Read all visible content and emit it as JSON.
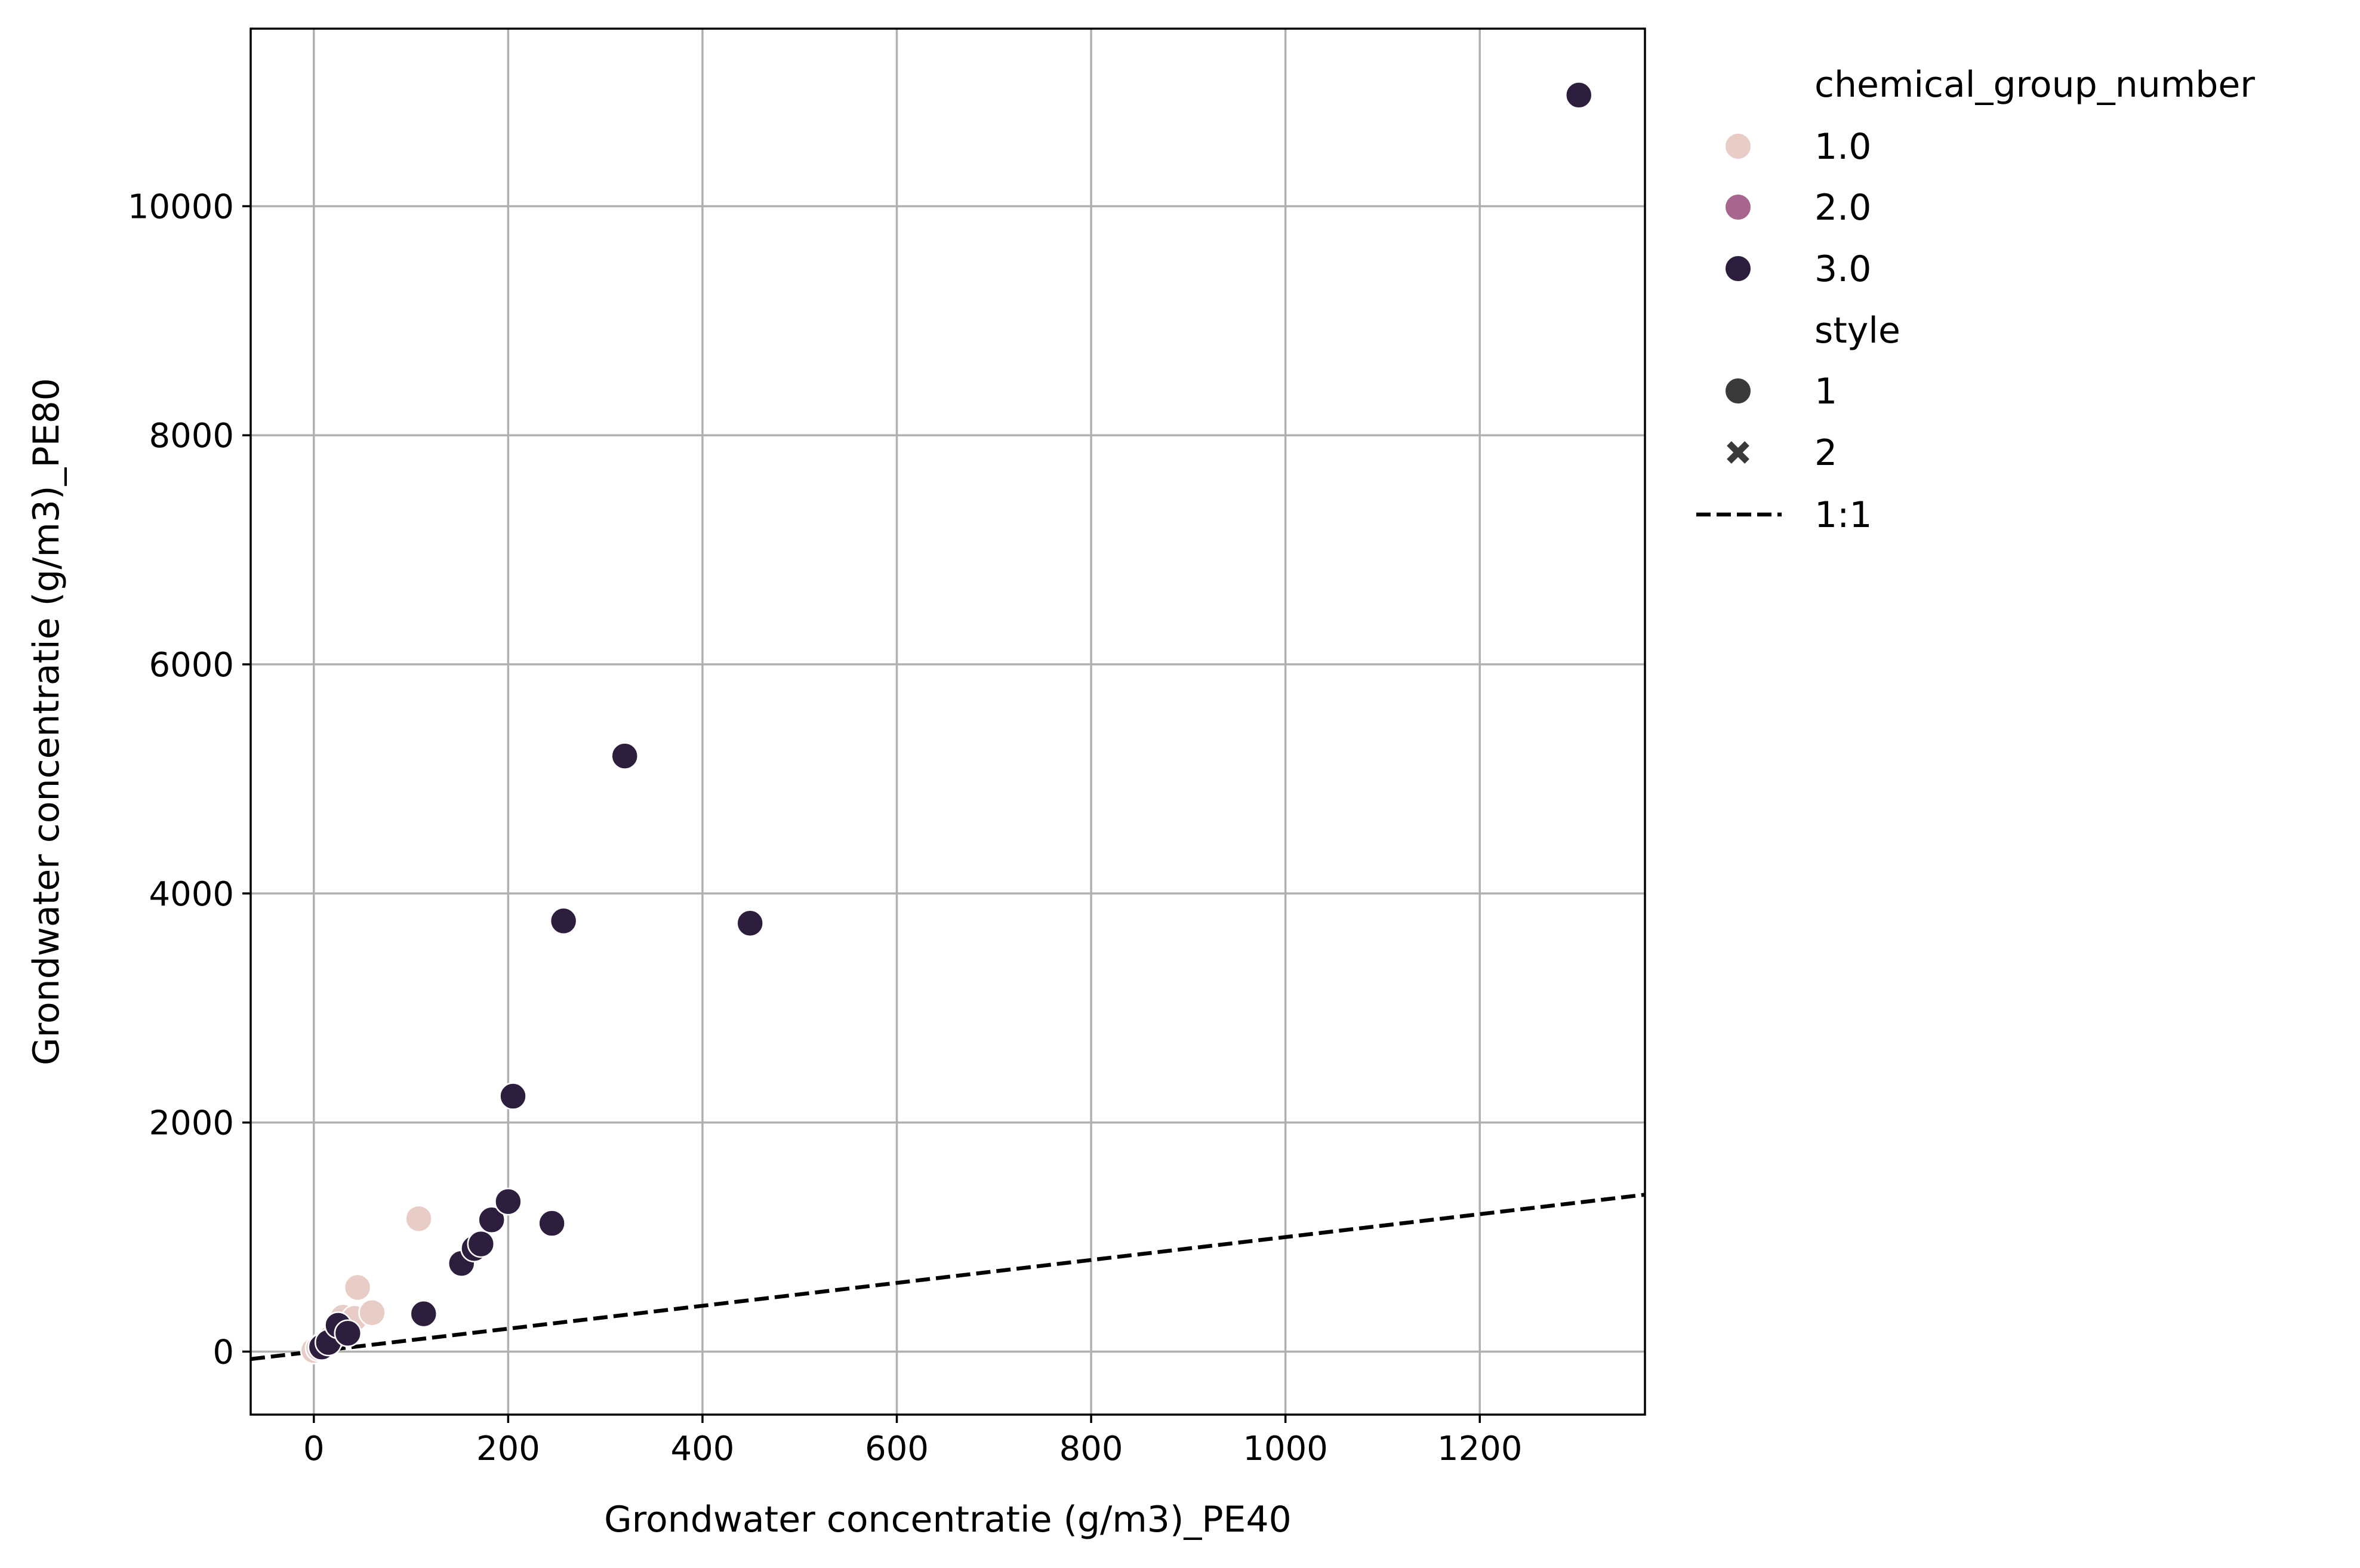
{
  "chart_data": {
    "type": "scatter",
    "xlabel": "Grondwater concentratie (g/m3)_PE40",
    "ylabel": "Grondwater concentratie (g/m3)_PE80",
    "xlim": [
      -65,
      1370
    ],
    "ylim": [
      -550,
      11550
    ],
    "xticks": [
      0,
      200,
      400,
      600,
      800,
      1000,
      1200
    ],
    "yticks": [
      0,
      2000,
      4000,
      6000,
      8000,
      10000
    ],
    "grid": true,
    "legend": {
      "placement": "outside right",
      "hue_title": "chemical_group_number",
      "hue_entries": [
        {
          "label": "1.0",
          "color": "#e8cdc6"
        },
        {
          "label": "2.0",
          "color": "#a8668f"
        },
        {
          "label": "3.0",
          "color": "#2d1e3e"
        }
      ],
      "style_title": "style",
      "style_entries": [
        {
          "label": "1",
          "marker": "circle"
        },
        {
          "label": "2",
          "marker": "x"
        }
      ],
      "line_entry": {
        "label": "1:1",
        "style": "dashed"
      }
    },
    "reference_line": {
      "name": "1:1",
      "slope": 1,
      "intercept": 0,
      "style": "dashed",
      "color": "#000000"
    },
    "series": [
      {
        "name": "1.0",
        "color": "#e8cdc6",
        "points": [
          {
            "x": 0,
            "y": 10
          },
          {
            "x": 5,
            "y": 30
          },
          {
            "x": 10,
            "y": 60
          },
          {
            "x": 18,
            "y": 120
          },
          {
            "x": 25,
            "y": 200
          },
          {
            "x": 30,
            "y": 300
          },
          {
            "x": 42,
            "y": 290
          },
          {
            "x": 45,
            "y": 560
          },
          {
            "x": 60,
            "y": 340
          },
          {
            "x": 108,
            "y": 1160
          }
        ]
      },
      {
        "name": "3.0",
        "color": "#2d1e3e",
        "points": [
          {
            "x": 8,
            "y": 40
          },
          {
            "x": 15,
            "y": 80
          },
          {
            "x": 25,
            "y": 230
          },
          {
            "x": 35,
            "y": 160
          },
          {
            "x": 113,
            "y": 330
          },
          {
            "x": 152,
            "y": 770
          },
          {
            "x": 165,
            "y": 900
          },
          {
            "x": 172,
            "y": 940
          },
          {
            "x": 183,
            "y": 1150
          },
          {
            "x": 200,
            "y": 1310
          },
          {
            "x": 205,
            "y": 2230
          },
          {
            "x": 245,
            "y": 1120
          },
          {
            "x": 257,
            "y": 3760
          },
          {
            "x": 320,
            "y": 5200
          },
          {
            "x": 449,
            "y": 3740
          },
          {
            "x": 1302,
            "y": 10970
          }
        ]
      }
    ]
  }
}
